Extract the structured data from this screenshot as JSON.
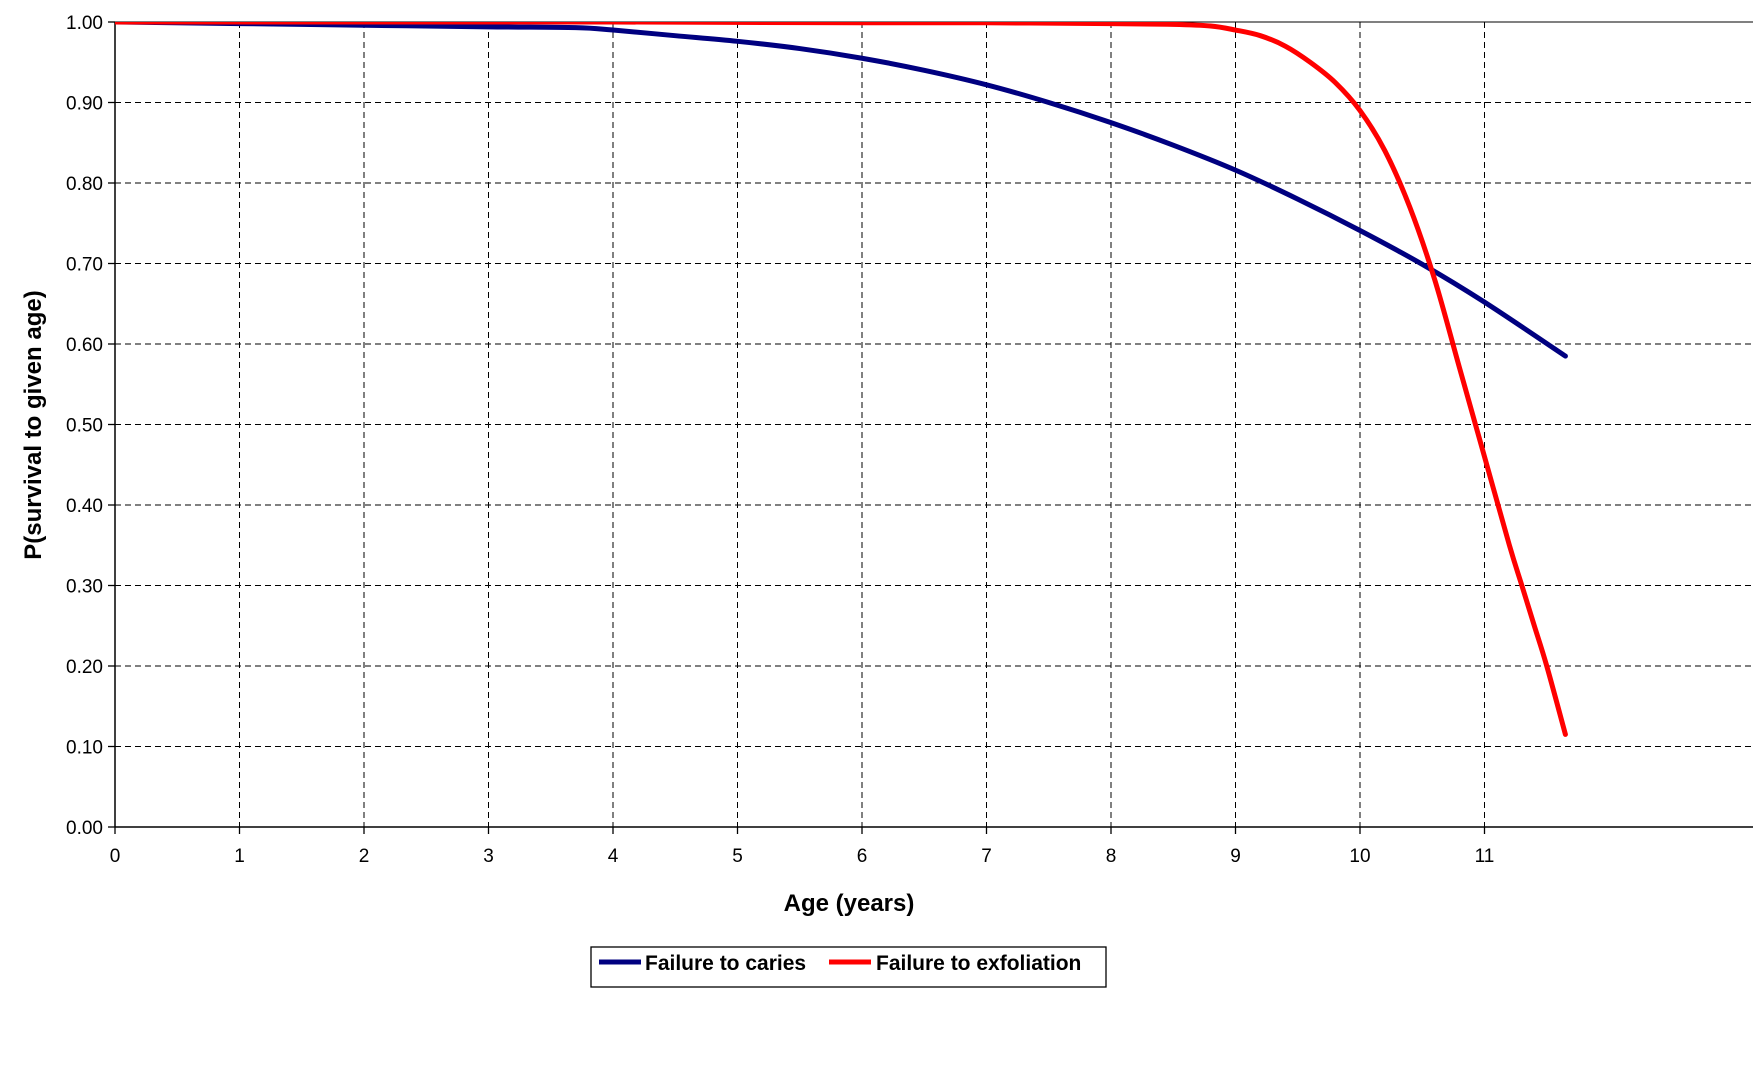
{
  "chart_data": {
    "type": "line",
    "xlabel": "Age (years)",
    "ylabel": "P(survival to given age)",
    "xlim": [
      0,
      11.65
    ],
    "ylim": [
      0,
      1
    ],
    "x_ticks": [
      "0",
      "1",
      "2",
      "3",
      "4",
      "5",
      "6",
      "7",
      "8",
      "9",
      "10",
      "11"
    ],
    "y_ticks": [
      "0.00",
      "0.10",
      "0.20",
      "0.30",
      "0.40",
      "0.50",
      "0.60",
      "0.70",
      "0.80",
      "0.90",
      "1.00"
    ],
    "grid": true,
    "legend_position": "bottom",
    "series": [
      {
        "name": "Failure to caries",
        "color": "#000080",
        "x": [
          0,
          1,
          2,
          3,
          3.7,
          4,
          4.5,
          5,
          5.5,
          6,
          6.5,
          7,
          7.5,
          8,
          8.5,
          9,
          9.5,
          10,
          10.5,
          11,
          11.65
        ],
        "y": [
          1.0,
          0.998,
          0.996,
          0.994,
          0.993,
          0.99,
          0.983,
          0.976,
          0.967,
          0.955,
          0.94,
          0.922,
          0.9,
          0.875,
          0.847,
          0.816,
          0.78,
          0.741,
          0.699,
          0.652,
          0.585
        ]
      },
      {
        "name": "Failure to exfoliation",
        "color": "#ff0000",
        "x": [
          0,
          2,
          4,
          6,
          7,
          8,
          8.5,
          8.8,
          9.0,
          9.2,
          9.4,
          9.6,
          9.8,
          10.0,
          10.2,
          10.4,
          10.6,
          10.8,
          11.0,
          11.2,
          11.3,
          11.4,
          11.5,
          11.65
        ],
        "y": [
          1.0,
          1.0,
          1.0,
          0.999,
          0.999,
          0.998,
          0.997,
          0.995,
          0.99,
          0.983,
          0.97,
          0.95,
          0.925,
          0.89,
          0.84,
          0.77,
          0.68,
          0.57,
          0.46,
          0.35,
          0.3,
          0.25,
          0.2,
          0.115
        ]
      }
    ]
  }
}
